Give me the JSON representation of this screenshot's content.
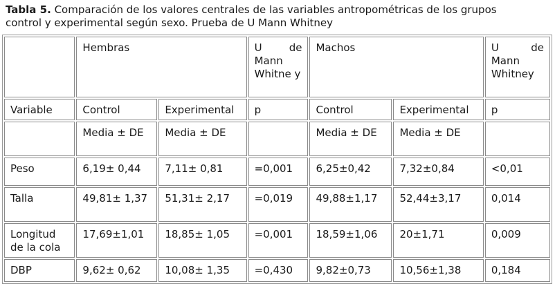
{
  "caption": {
    "label": "Tabla 5.",
    "text": "Comparación de los valores centrales de las variables antropométricas de los grupos control y experimental según sexo. Prueba de U Mann Whitney"
  },
  "table": {
    "group1": "Hembras",
    "test1": "U de Mann Whitne y",
    "group2": "Machos",
    "test2": "U de Mann Whitney",
    "header": [
      "Variable",
      "Control",
      "Experimental",
      "p",
      "Control",
      "Experimental",
      "p"
    ],
    "subheader": [
      "",
      "Media ± DE",
      "Media ± DE",
      "",
      "Media ± DE",
      "Media ± DE",
      ""
    ],
    "rows": [
      [
        "Peso",
        "6,19± 0,44",
        "7,11± 0,81",
        "=0,001",
        "6,25±0,42",
        "7,32±0,84",
        "<0,01"
      ],
      [
        "Talla",
        "49,81± 1,37",
        "51,31± 2,17",
        "=0,019",
        "49,88±1,17",
        "52,44±3,17",
        "0,014"
      ],
      [
        "Longitud de la cola",
        "17,69±1,01",
        "18,85± 1,05",
        "=0,001",
        "18,59±1,06",
        "20±1,71",
        "0,009"
      ],
      [
        "DBP",
        "9,62± 0,62",
        "10,08± 1,35",
        "=0,430",
        "9,82±0,73",
        "10,56±1,38",
        "0,184"
      ]
    ]
  }
}
